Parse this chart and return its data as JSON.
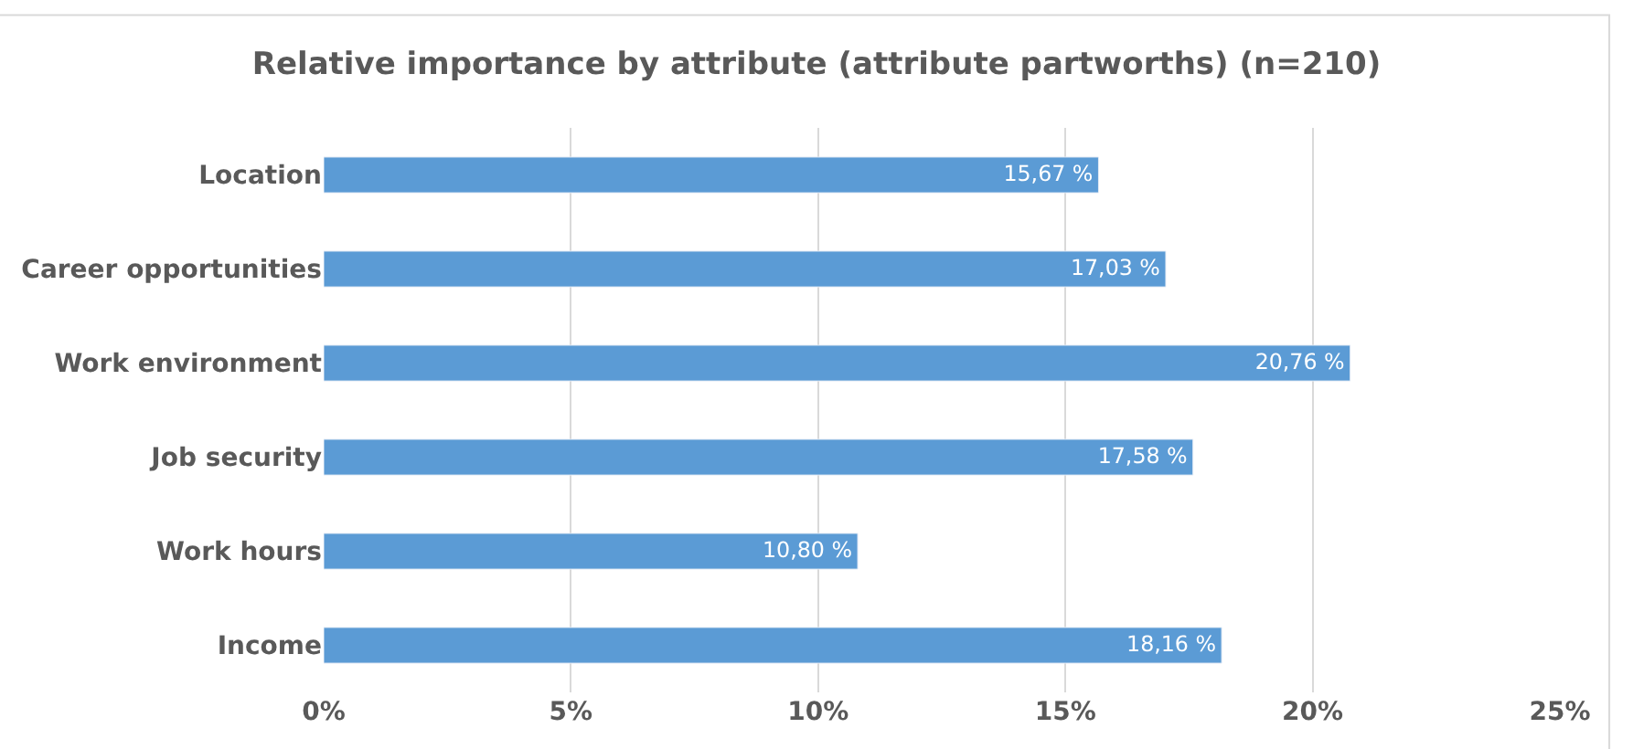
{
  "chart_data": {
    "type": "bar",
    "orientation": "horizontal",
    "title": "Relative importance by attribute (attribute partworths) (n=210)",
    "categories": [
      "Location",
      "Career opportunities",
      "Work environment",
      "Job security",
      "Work hours",
      "Income"
    ],
    "values": [
      15.67,
      17.03,
      20.76,
      17.58,
      10.8,
      18.16
    ],
    "value_labels": [
      "15,67 %",
      "17,03 %",
      "20,76 %",
      "17,58 %",
      "10,80 %",
      "18,16 %"
    ],
    "color": "#5b9bd5",
    "xlim": [
      0,
      25
    ],
    "xticks": [
      {
        "value": 0,
        "label": "0%"
      },
      {
        "value": 5,
        "label": "5%"
      },
      {
        "value": 10,
        "label": "10%"
      },
      {
        "value": 15,
        "label": "15%"
      },
      {
        "value": 20,
        "label": "20%"
      },
      {
        "value": 25,
        "label": "25%"
      }
    ],
    "grid": "x",
    "legend": false
  }
}
